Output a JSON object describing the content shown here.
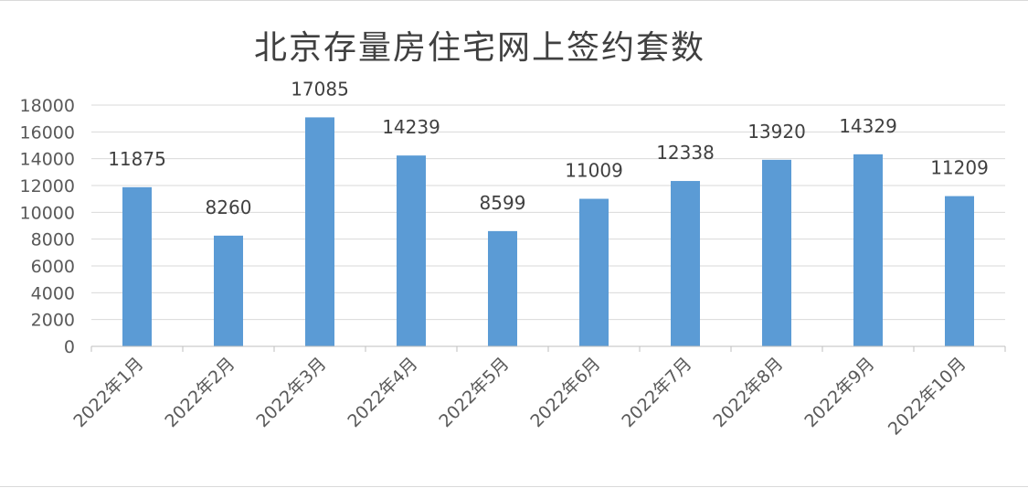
{
  "chart_data": {
    "type": "bar",
    "title": "北京存量房住宅网上签约套数",
    "xlabel": "",
    "ylabel": "",
    "categories": [
      "2022年1月",
      "2022年2月",
      "2022年3月",
      "2022年4月",
      "2022年5月",
      "2022年6月",
      "2022年7月",
      "2022年8月",
      "2022年9月",
      "2022年10月"
    ],
    "series": [
      {
        "values": [
          11875,
          8260,
          17085,
          14239,
          8599,
          11009,
          12338,
          13920,
          14329,
          11209
        ]
      }
    ],
    "ylim": [
      0,
      18000
    ],
    "yticks": [
      0,
      2000,
      4000,
      6000,
      8000,
      10000,
      12000,
      14000,
      16000,
      18000
    ],
    "grid": true,
    "legend": "none",
    "bar_color": "#5b9bd5",
    "data_labels": true
  }
}
